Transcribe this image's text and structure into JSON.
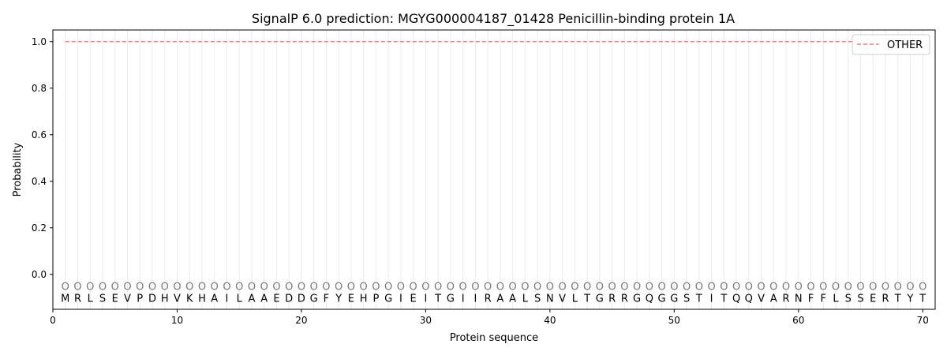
{
  "chart_data": {
    "type": "line",
    "title": "SignalP 6.0 prediction: MGYG000004187_01428 Penicillin-binding protein 1A",
    "xlabel": "Protein sequence",
    "ylabel": "Probability",
    "xlim": [
      0,
      71
    ],
    "ylim": [
      -0.15,
      1.05
    ],
    "xticks": [
      0,
      10,
      20,
      30,
      40,
      50,
      60,
      70
    ],
    "yticks": [
      0.0,
      0.2,
      0.4,
      0.6,
      0.8,
      1.0
    ],
    "grid": "vertical lines at each residue",
    "legend_placement": "top-right",
    "sequence": [
      "M",
      "R",
      "L",
      "S",
      "E",
      "V",
      "P",
      "D",
      "H",
      "V",
      "K",
      "H",
      "A",
      "I",
      "L",
      "A",
      "A",
      "E",
      "D",
      "D",
      "G",
      "F",
      "Y",
      "E",
      "H",
      "P",
      "G",
      "I",
      "E",
      "I",
      "T",
      "G",
      "I",
      "I",
      "R",
      "A",
      "A",
      "L",
      "S",
      "N",
      "V",
      "L",
      "T",
      "G",
      "R",
      "R",
      "G",
      "Q",
      "G",
      "G",
      "S",
      "T",
      "I",
      "T",
      "Q",
      "Q",
      "V",
      "A",
      "R",
      "N",
      "F",
      "F",
      "L",
      "S",
      "S",
      "E",
      "R",
      "T",
      "Y",
      "T"
    ],
    "predicted_labels": "OOOOOOOOOOOOOOOOOOOOOOOOOOOOOOOOOOOOOOOOOOOOOOOOOOOOOOOOOOOOOOOOOOOOOO",
    "series": [
      {
        "name": "OTHER",
        "color": "#f08080",
        "style": "dashed",
        "x_start": 1,
        "x_end": 70,
        "value": 1.0
      }
    ]
  }
}
